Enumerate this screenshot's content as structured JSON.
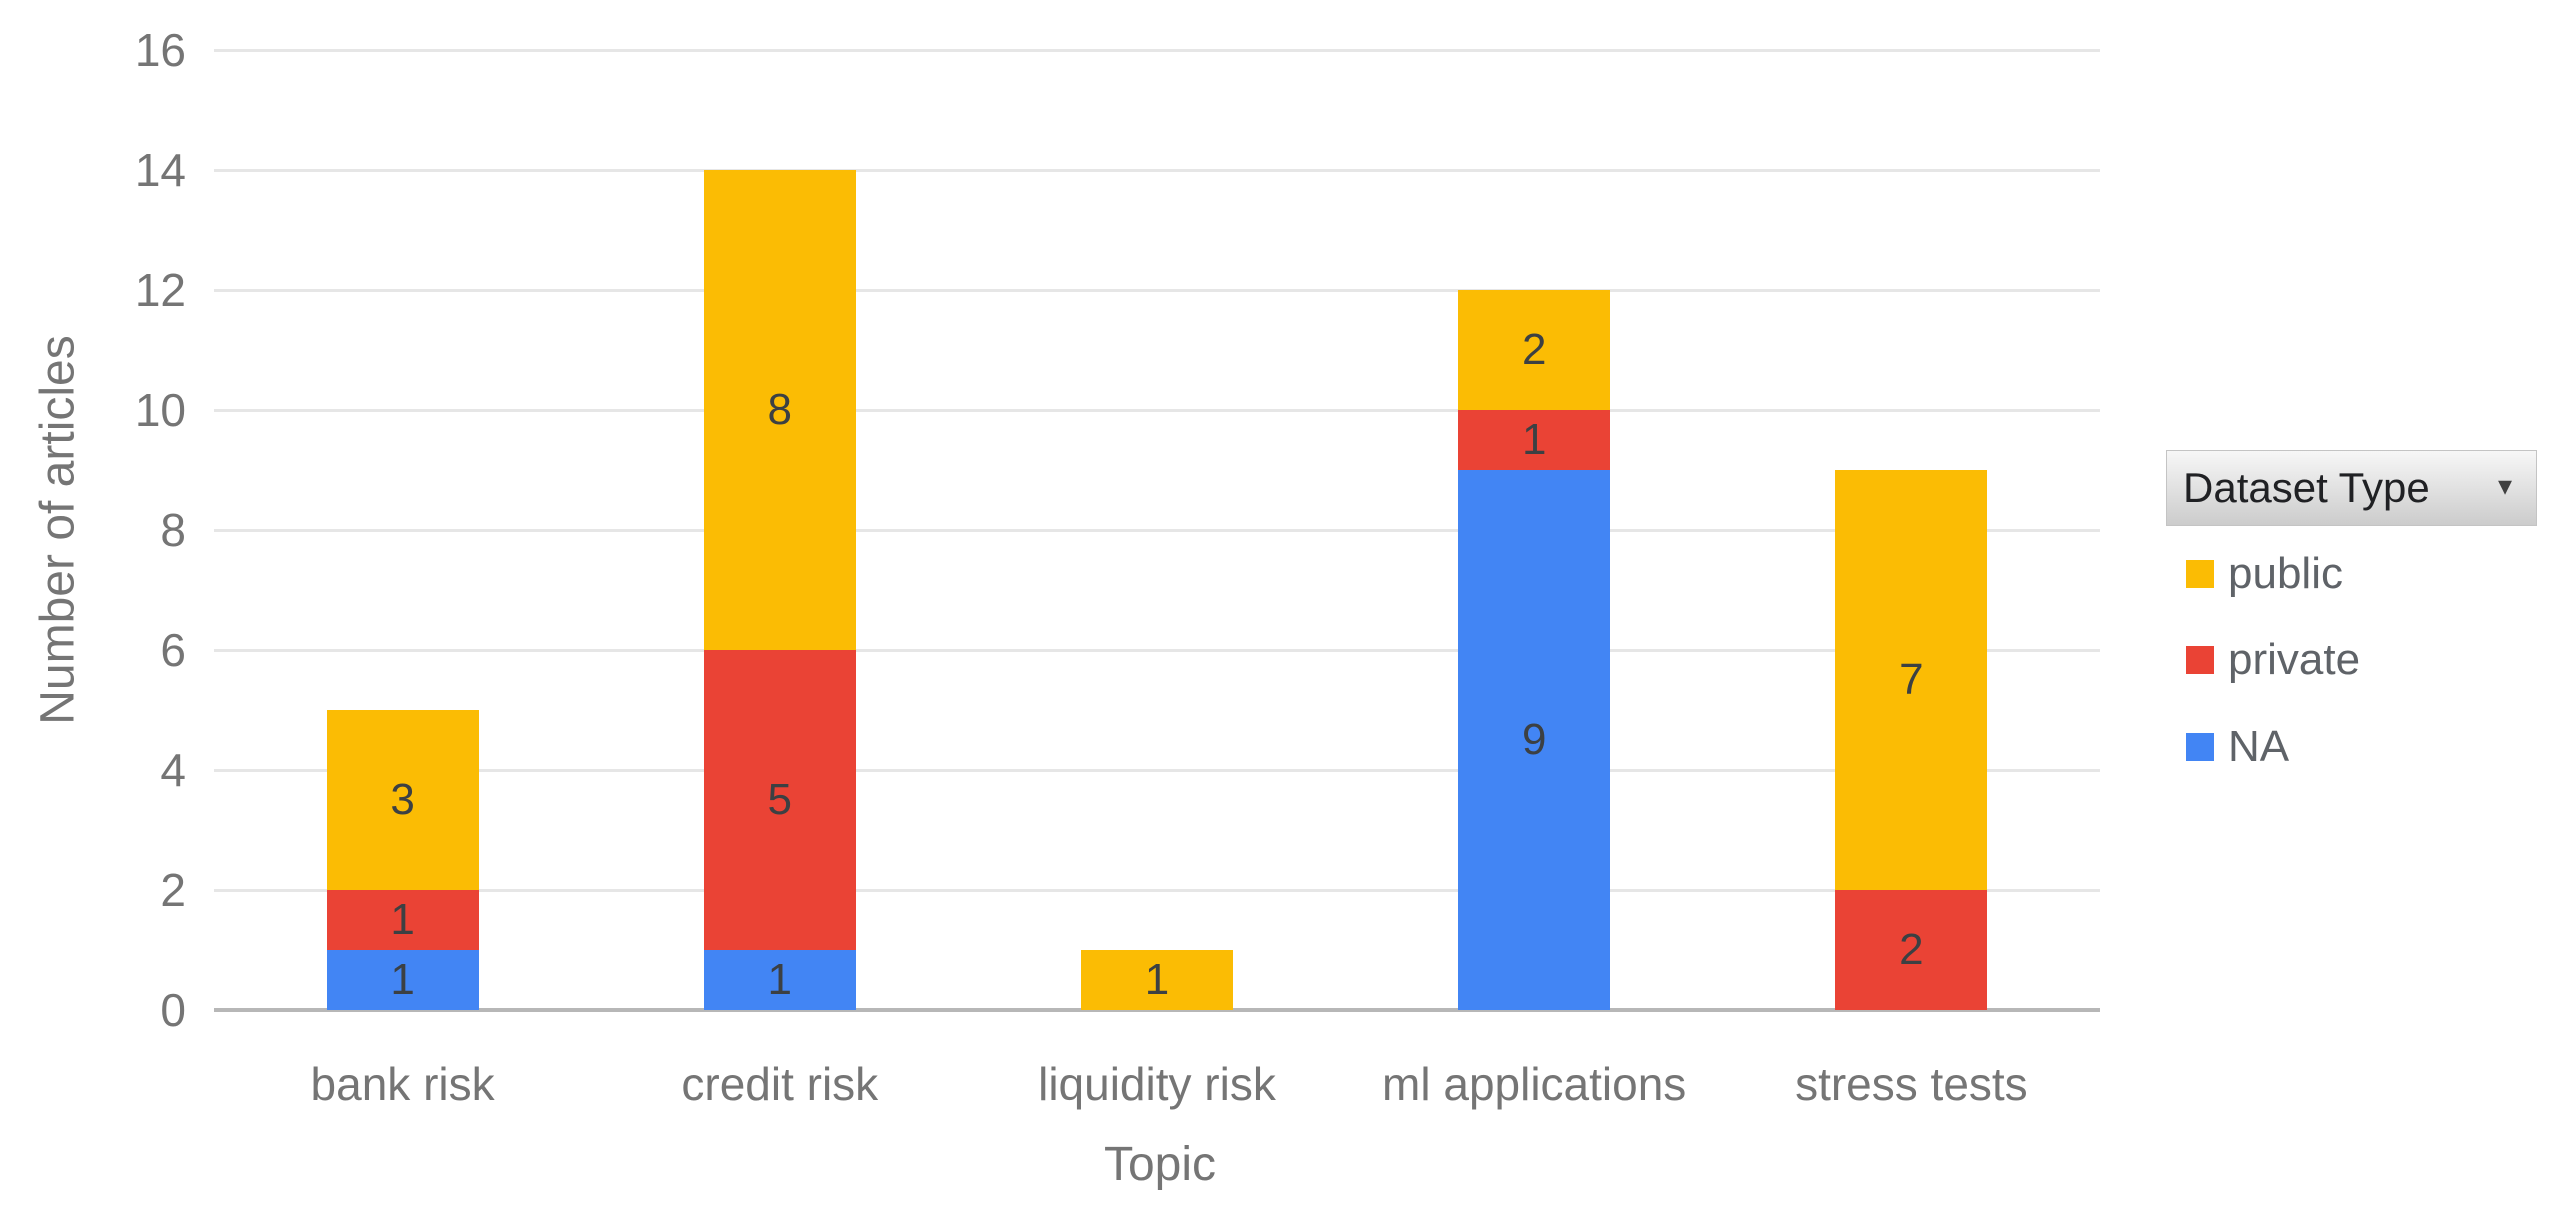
{
  "chart_data": {
    "type": "bar",
    "stacked": true,
    "title": "",
    "xlabel": "Topic",
    "ylabel": "Number of articles",
    "categories": [
      "bank risk",
      "credit risk",
      "liquidity risk",
      "ml applications",
      "stress tests"
    ],
    "series": [
      {
        "name": "NA",
        "color": "#4285F4",
        "values": [
          1,
          1,
          0,
          9,
          0
        ]
      },
      {
        "name": "private",
        "color": "#EA4335",
        "values": [
          1,
          5,
          0,
          1,
          2
        ]
      },
      {
        "name": "public",
        "color": "#FBBC04",
        "values": [
          3,
          8,
          1,
          2,
          7
        ]
      }
    ],
    "totals": [
      5,
      14,
      1,
      12,
      9
    ],
    "ylim": [
      0,
      16
    ],
    "yticks": [
      0,
      2,
      4,
      6,
      8,
      10,
      12,
      14,
      16
    ],
    "grid": true,
    "legend_position": "right"
  },
  "legend": {
    "title": "Dataset Type",
    "dropdown_arrow": "▾",
    "items": [
      {
        "label": "public",
        "color": "#FBBC04"
      },
      {
        "label": "private",
        "color": "#EA4335"
      },
      {
        "label": "NA",
        "color": "#4285F4"
      }
    ]
  },
  "colors": {
    "background": "#ffffff",
    "gridline": "#e6e6e6",
    "baseline": "#b7b7b7",
    "axis_text": "#757575",
    "data_label": "#3c4043",
    "legend_text": "#5f6368"
  }
}
